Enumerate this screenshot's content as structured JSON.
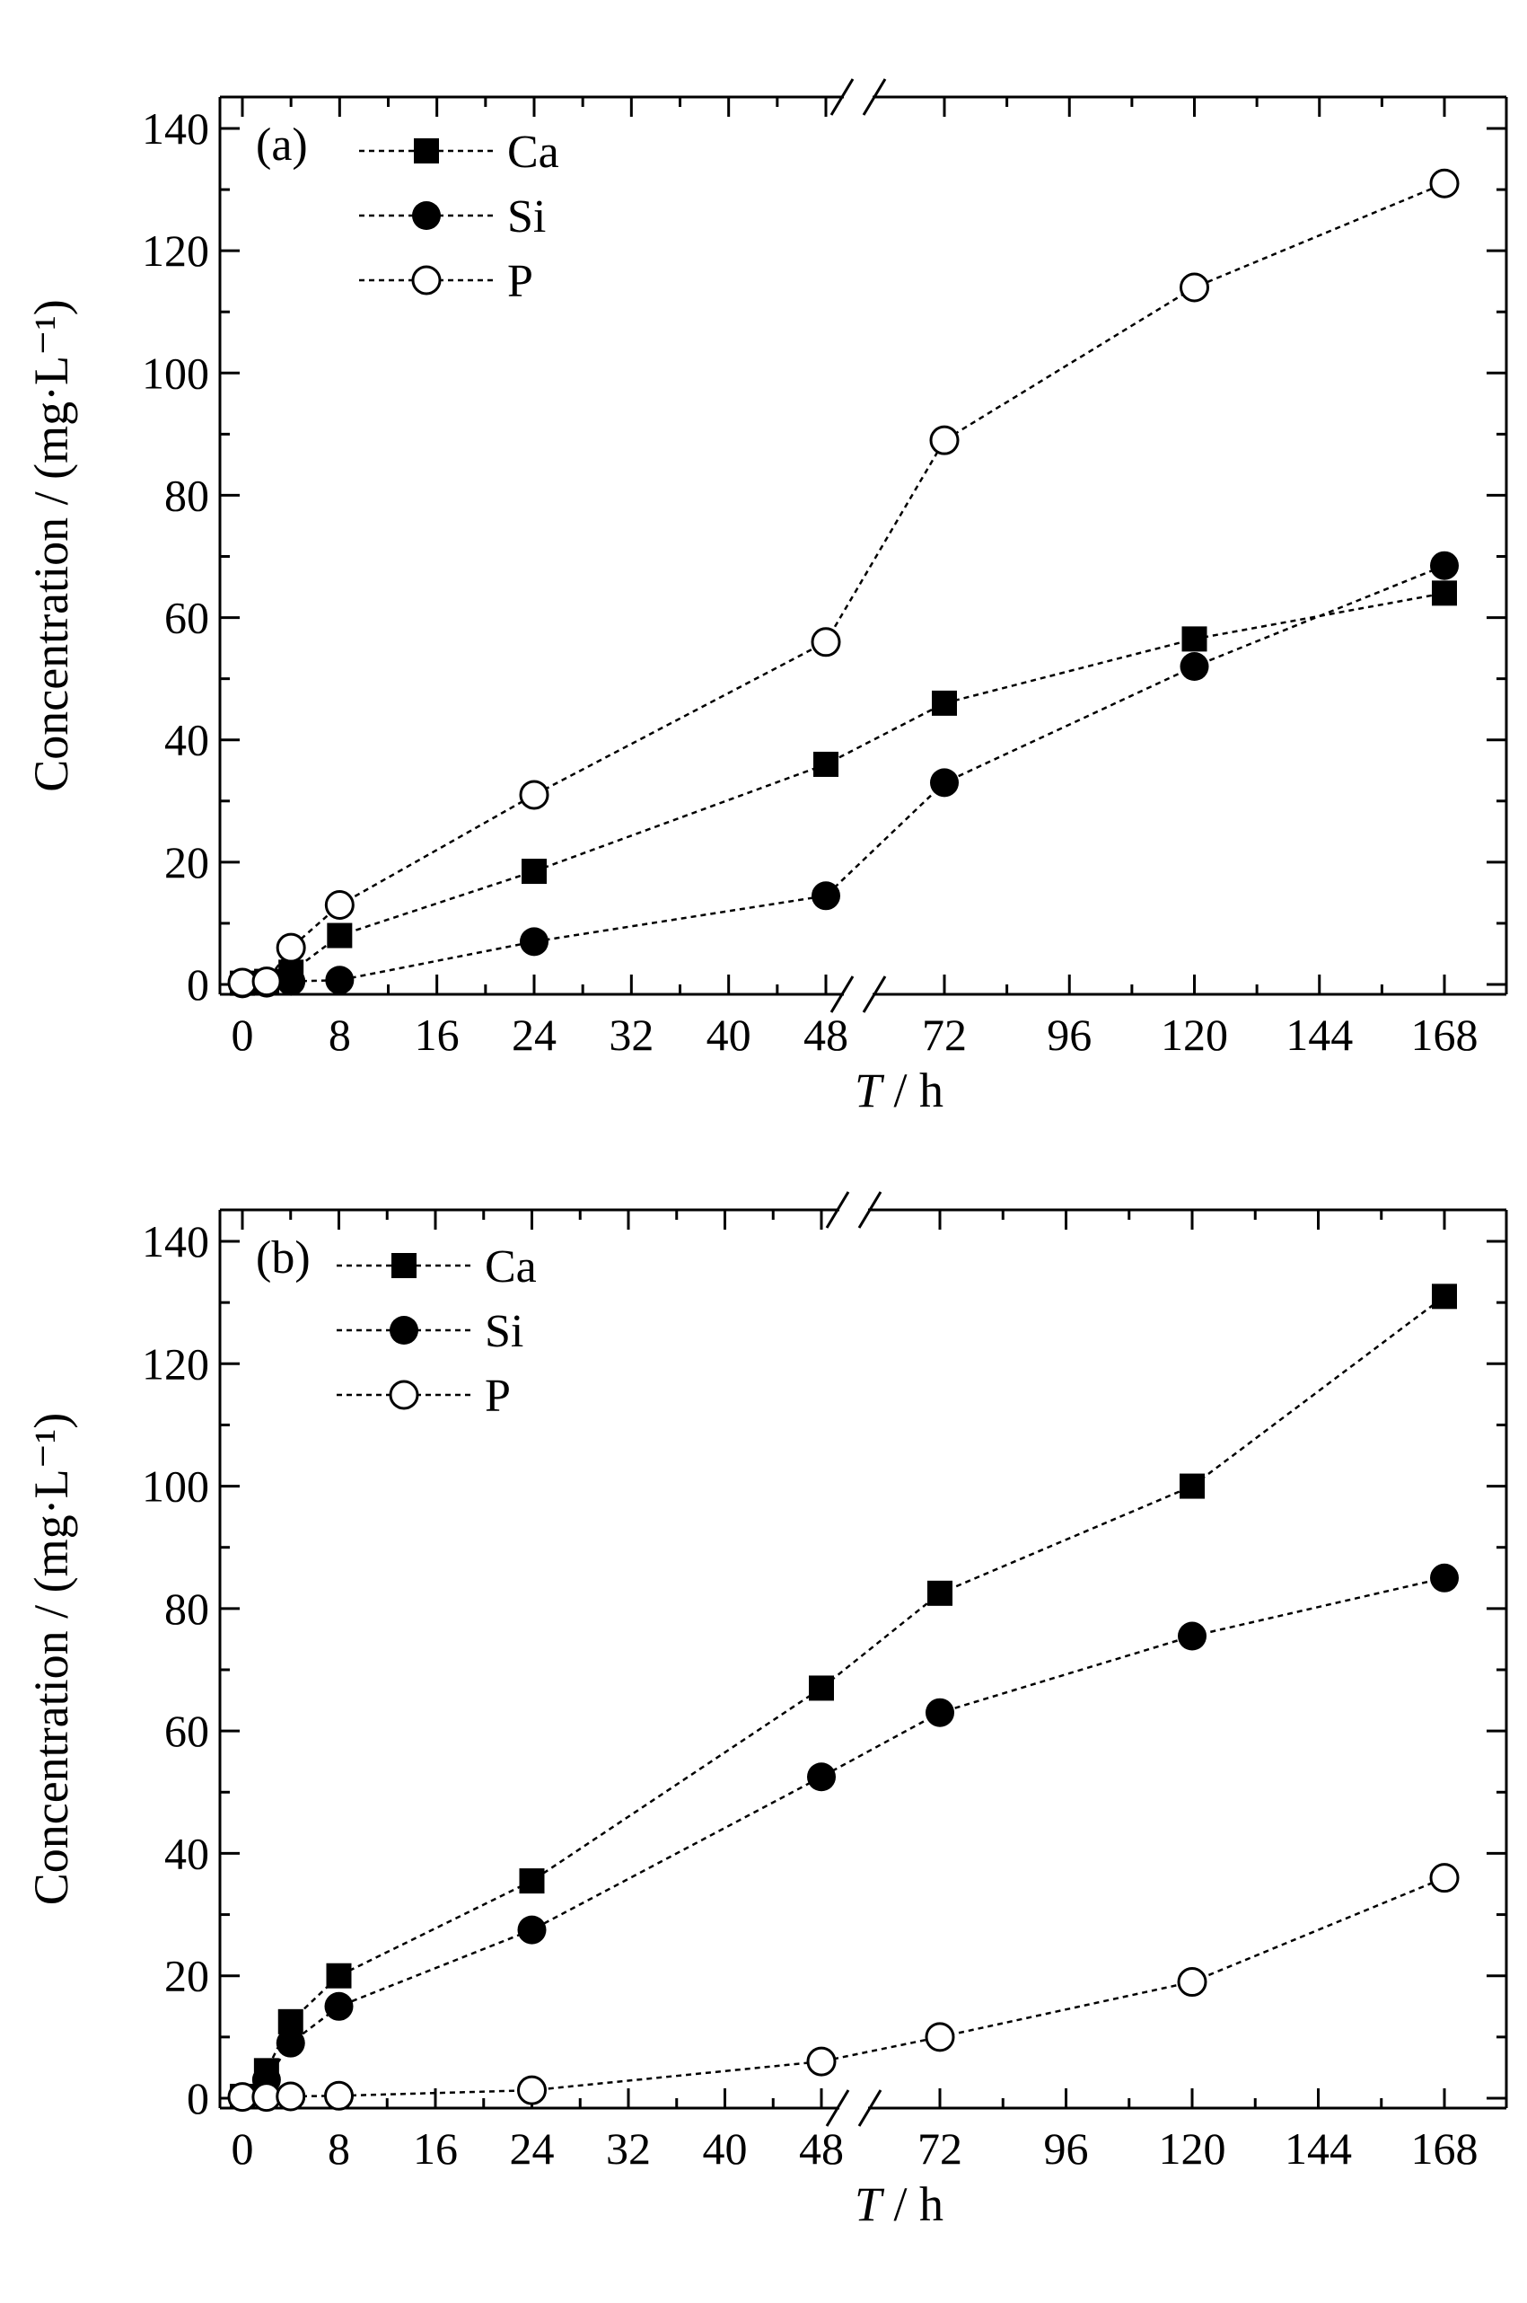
{
  "chart_data": [
    {
      "type": "line",
      "panel_label": "(a)",
      "xlabel_italic": "T",
      "xlabel_rest": " / h",
      "ylabel": "Concentration / (mg·L⁻¹)",
      "x_ticks": [
        0,
        8,
        16,
        24,
        32,
        40,
        48,
        72,
        96,
        120,
        144,
        168
      ],
      "y_ticks": [
        0,
        20,
        40,
        60,
        80,
        100,
        120,
        140
      ],
      "ylim": [
        0,
        145
      ],
      "x_axis_break": "between 48 and 72",
      "legend_position": "top-left",
      "grid": false,
      "series": [
        {
          "name": "Ca",
          "marker": "filled-square",
          "x": [
            0,
            2,
            4,
            8,
            24,
            48,
            72,
            120,
            168
          ],
          "y": [
            0.2,
            0.5,
            2,
            8,
            18.5,
            36,
            46,
            56.5,
            64
          ]
        },
        {
          "name": "Si",
          "marker": "filled-circle",
          "x": [
            0,
            2,
            4,
            8,
            24,
            48,
            72,
            120,
            168
          ],
          "y": [
            0.1,
            0.2,
            0.5,
            0.7,
            7,
            14.5,
            33,
            52,
            68.5
          ]
        },
        {
          "name": "P",
          "marker": "open-circle",
          "x": [
            0,
            2,
            4,
            8,
            24,
            48,
            72,
            120,
            168
          ],
          "y": [
            0.3,
            0.5,
            6,
            13,
            31,
            56,
            89,
            114,
            131
          ]
        }
      ]
    },
    {
      "type": "line",
      "panel_label": "(b)",
      "xlabel_italic": "T",
      "xlabel_rest": " / h",
      "ylabel": "Concentration / (mg·L⁻¹)",
      "x_ticks": [
        0,
        8,
        16,
        24,
        32,
        40,
        48,
        72,
        96,
        120,
        144,
        168
      ],
      "y_ticks": [
        0,
        20,
        40,
        60,
        80,
        100,
        120,
        140
      ],
      "ylim": [
        0,
        145
      ],
      "x_axis_break": "between 48 and 72",
      "legend_position": "top-left",
      "grid": false,
      "series": [
        {
          "name": "Ca",
          "marker": "filled-square",
          "x": [
            0,
            2,
            4,
            8,
            24,
            48,
            72,
            120,
            168
          ],
          "y": [
            0.3,
            4.5,
            12.5,
            20,
            35.5,
            67,
            82.5,
            100,
            131
          ]
        },
        {
          "name": "Si",
          "marker": "filled-circle",
          "x": [
            0,
            2,
            4,
            8,
            24,
            48,
            72,
            120,
            168
          ],
          "y": [
            0.2,
            3,
            9,
            15,
            27.5,
            52.5,
            63,
            75.5,
            85
          ]
        },
        {
          "name": "P",
          "marker": "open-circle",
          "x": [
            0,
            2,
            4,
            8,
            24,
            48,
            72,
            120,
            168
          ],
          "y": [
            0.2,
            0.2,
            0.3,
            0.4,
            1.3,
            6,
            10,
            19,
            36
          ]
        }
      ]
    }
  ]
}
